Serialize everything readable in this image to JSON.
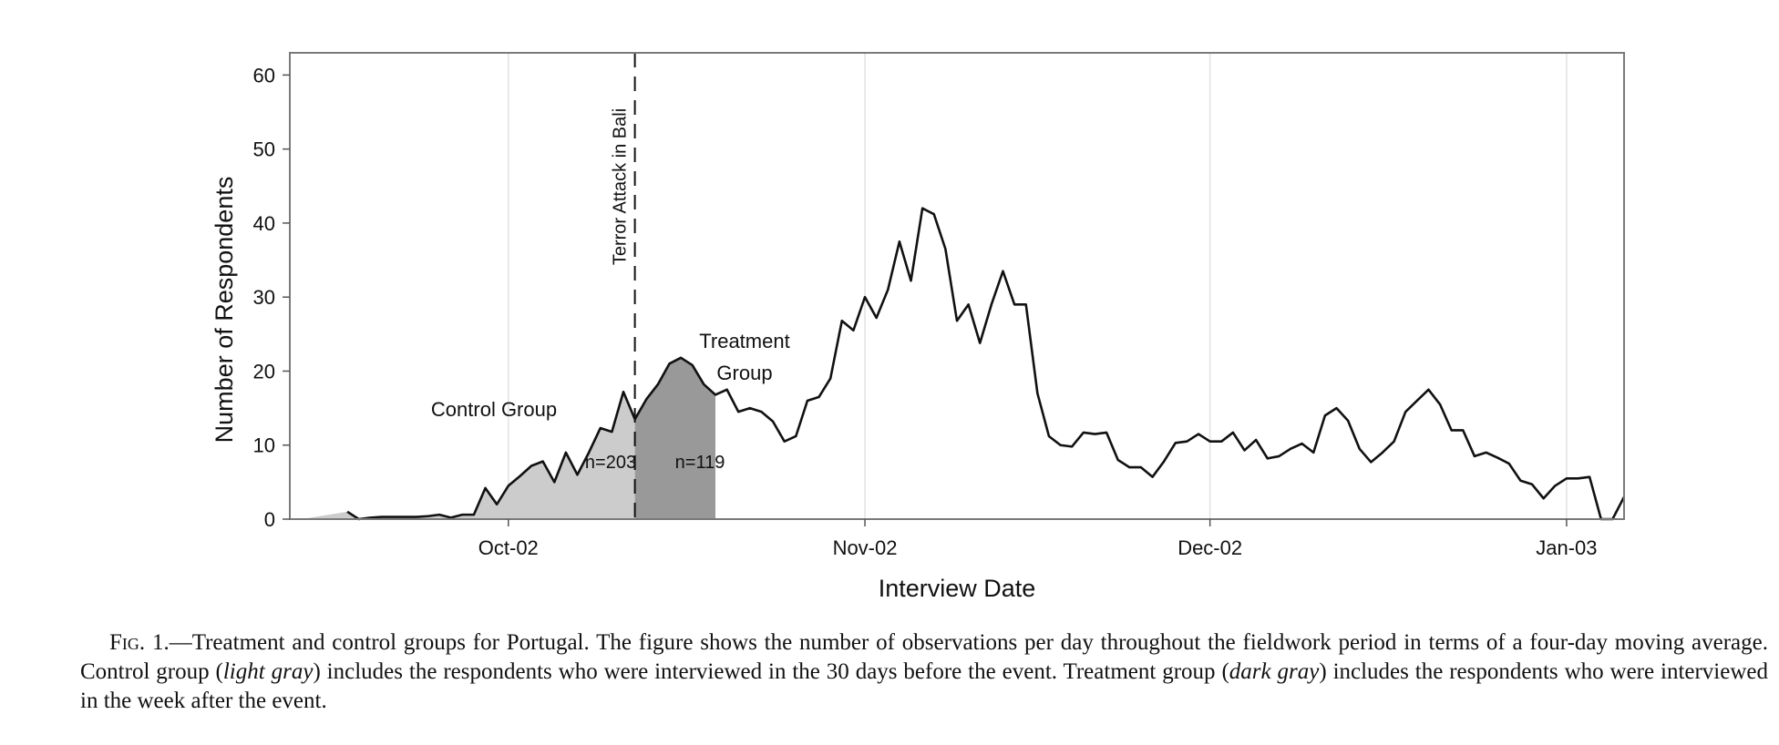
{
  "chart_data": {
    "type": "line",
    "xlabel": "Interview Date",
    "ylabel": "Number of Respondents",
    "ylim": [
      0,
      63
    ],
    "yticks": [
      0,
      10,
      20,
      30,
      40,
      50,
      60
    ],
    "xlim": [
      "2002-09-12",
      "2003-01-06"
    ],
    "xticks": [
      {
        "label": "Oct-02",
        "date": "2002-10-01"
      },
      {
        "label": "Nov-02",
        "date": "2002-11-01"
      },
      {
        "label": "Dec-02",
        "date": "2002-12-01"
      },
      {
        "label": "Jan-03",
        "date": "2003-01-01"
      }
    ],
    "grid": "vertical",
    "series": [
      {
        "points": [
          [
            "2002-09-17",
            1.0
          ],
          [
            "2002-09-18",
            0.0
          ],
          [
            "2002-09-19",
            0.2
          ],
          [
            "2002-09-20",
            0.3
          ],
          [
            "2002-09-21",
            0.3
          ],
          [
            "2002-09-22",
            0.3
          ],
          [
            "2002-09-23",
            0.3
          ],
          [
            "2002-09-24",
            0.4
          ],
          [
            "2002-09-25",
            0.6
          ],
          [
            "2002-09-26",
            0.2
          ],
          [
            "2002-09-27",
            0.6
          ],
          [
            "2002-09-28",
            0.6
          ],
          [
            "2002-09-29",
            4.2
          ],
          [
            "2002-09-30",
            2.0
          ],
          [
            "2002-10-01",
            4.5
          ],
          [
            "2002-10-02",
            5.8
          ],
          [
            "2002-10-03",
            7.2
          ],
          [
            "2002-10-04",
            7.8
          ],
          [
            "2002-10-05",
            5.0
          ],
          [
            "2002-10-06",
            9.0
          ],
          [
            "2002-10-07",
            6.0
          ],
          [
            "2002-10-08",
            9.0
          ],
          [
            "2002-10-09",
            12.3
          ],
          [
            "2002-10-10",
            11.8
          ],
          [
            "2002-10-11",
            17.2
          ],
          [
            "2002-10-12",
            13.5
          ],
          [
            "2002-10-13",
            16.2
          ],
          [
            "2002-10-14",
            18.2
          ],
          [
            "2002-10-15",
            21.0
          ],
          [
            "2002-10-16",
            21.8
          ],
          [
            "2002-10-17",
            20.8
          ],
          [
            "2002-10-18",
            18.2
          ],
          [
            "2002-10-19",
            16.8
          ],
          [
            "2002-10-20",
            17.5
          ],
          [
            "2002-10-21",
            14.5
          ],
          [
            "2002-10-22",
            15.0
          ],
          [
            "2002-10-23",
            14.5
          ],
          [
            "2002-10-24",
            13.2
          ],
          [
            "2002-10-25",
            10.5
          ],
          [
            "2002-10-26",
            11.2
          ],
          [
            "2002-10-27",
            16.0
          ],
          [
            "2002-10-28",
            16.5
          ],
          [
            "2002-10-29",
            19.0
          ],
          [
            "2002-10-30",
            26.8
          ],
          [
            "2002-10-31",
            25.5
          ],
          [
            "2002-11-01",
            30.0
          ],
          [
            "2002-11-02",
            27.2
          ],
          [
            "2002-11-03",
            31.0
          ],
          [
            "2002-11-04",
            37.5
          ],
          [
            "2002-11-05",
            32.2
          ],
          [
            "2002-11-06",
            42.0
          ],
          [
            "2002-11-07",
            41.2
          ],
          [
            "2002-11-08",
            36.5
          ],
          [
            "2002-11-09",
            26.8
          ],
          [
            "2002-11-10",
            29.0
          ],
          [
            "2002-11-11",
            23.8
          ],
          [
            "2002-11-12",
            29.0
          ],
          [
            "2002-11-13",
            33.5
          ],
          [
            "2002-11-14",
            29.0
          ],
          [
            "2002-11-15",
            29.0
          ],
          [
            "2002-11-16",
            17.0
          ],
          [
            "2002-11-17",
            11.2
          ],
          [
            "2002-11-18",
            10.0
          ],
          [
            "2002-11-19",
            9.8
          ],
          [
            "2002-11-20",
            11.7
          ],
          [
            "2002-11-21",
            11.5
          ],
          [
            "2002-11-22",
            11.7
          ],
          [
            "2002-11-23",
            8.0
          ],
          [
            "2002-11-24",
            7.0
          ],
          [
            "2002-11-25",
            7.0
          ],
          [
            "2002-11-26",
            5.7
          ],
          [
            "2002-11-27",
            7.8
          ],
          [
            "2002-11-28",
            10.3
          ],
          [
            "2002-11-29",
            10.5
          ],
          [
            "2002-11-30",
            11.5
          ],
          [
            "2002-12-01",
            10.5
          ],
          [
            "2002-12-02",
            10.5
          ],
          [
            "2002-12-03",
            11.7
          ],
          [
            "2002-12-04",
            9.3
          ],
          [
            "2002-12-05",
            10.7
          ],
          [
            "2002-12-06",
            8.2
          ],
          [
            "2002-12-07",
            8.5
          ],
          [
            "2002-12-08",
            9.5
          ],
          [
            "2002-12-09",
            10.2
          ],
          [
            "2002-12-10",
            9.0
          ],
          [
            "2002-12-11",
            14.0
          ],
          [
            "2002-12-12",
            15.0
          ],
          [
            "2002-12-13",
            13.3
          ],
          [
            "2002-12-14",
            9.5
          ],
          [
            "2002-12-15",
            7.7
          ],
          [
            "2002-12-16",
            9.0
          ],
          [
            "2002-12-17",
            10.5
          ],
          [
            "2002-12-18",
            14.5
          ],
          [
            "2002-12-19",
            16.0
          ],
          [
            "2002-12-20",
            17.5
          ],
          [
            "2002-12-21",
            15.5
          ],
          [
            "2002-12-22",
            12.0
          ],
          [
            "2002-12-23",
            12.0
          ],
          [
            "2002-12-24",
            8.5
          ],
          [
            "2002-12-25",
            9.0
          ],
          [
            "2002-12-26",
            8.3
          ],
          [
            "2002-12-27",
            7.5
          ],
          [
            "2002-12-28",
            5.2
          ],
          [
            "2002-12-29",
            4.7
          ],
          [
            "2002-12-30",
            2.8
          ],
          [
            "2002-12-31",
            4.5
          ],
          [
            "2003-01-01",
            5.5
          ],
          [
            "2003-01-02",
            5.5
          ],
          [
            "2003-01-03",
            5.7
          ],
          [
            "2003-01-04",
            0.0
          ],
          [
            "2003-01-05",
            0.0
          ],
          [
            "2003-01-06",
            3.0
          ]
        ]
      }
    ],
    "regions": [
      {
        "label": "Control Group",
        "n_label": "n=203",
        "start": "2002-09-13",
        "end": "2002-10-12",
        "color": "#cccccc"
      },
      {
        "label": "Treatment Group",
        "label_lines": [
          "Treatment",
          "Group"
        ],
        "n_label": "n=119",
        "start": "2002-10-12",
        "end": "2002-10-19",
        "color": "#999999"
      }
    ],
    "event": {
      "label": "Terror Attack in Bali",
      "date": "2002-10-12"
    }
  },
  "caption": {
    "fig_label": "Fig. 1.",
    "parts": [
      {
        "text": "—Treatment and control groups for Portugal. The figure shows the number of observations per day throughout the fieldwork period in terms of a four-day moving average. Control group ("
      },
      {
        "text": "light gray",
        "italic": true
      },
      {
        "text": ") includes the respondents who were interviewed in the 30 days before the event. Treatment group ("
      },
      {
        "text": "dark gray",
        "italic": true
      },
      {
        "text": ") includes the respondents who were interviewed in the week after the event."
      }
    ]
  }
}
